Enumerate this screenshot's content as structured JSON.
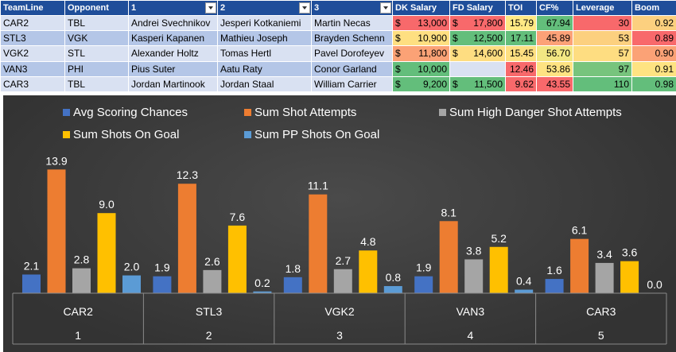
{
  "table": {
    "headers": [
      "TeamLine",
      "Opponent",
      "1",
      "2",
      "3",
      "DK Salary",
      "FD Salary",
      "TOI",
      "CF%",
      "Leverage",
      "Boom"
    ],
    "filter_columns": [
      2,
      3,
      4
    ],
    "rows": [
      {
        "teamline": "CAR2",
        "opponent": "TBL",
        "p1": "Andrei Svechnikov",
        "p2": "Jesperi Kotkaniemi",
        "p3": "Martin Necas",
        "dk_sym": "$",
        "dk": "13,000",
        "fd_sym": "$",
        "fd": "17,800",
        "toi": "15.79",
        "cf": "67.94",
        "leverage": "30",
        "boom": "0.92",
        "colors": {
          "dk": "#f8696b",
          "fd": "#f8696b",
          "toi": "#ffe984",
          "cf": "#63be7b",
          "leverage": "#f8696b",
          "boom": "#fcd07f"
        }
      },
      {
        "teamline": "STL3",
        "opponent": "VGK",
        "p1": "Kasperi Kapanen",
        "p2": "Mathieu Joseph",
        "p3": "Brayden Schenn",
        "dk_sym": "$",
        "dk": "10,900",
        "fd_sym": "$",
        "fd": "12,500",
        "toi": "17.11",
        "cf": "45.89",
        "leverage": "53",
        "boom": "0.89",
        "colors": {
          "dk": "#fedf81",
          "fd": "#63be7b",
          "toi": "#63be7b",
          "cf": "#fca177",
          "leverage": "#fcd07f",
          "boom": "#f8696b"
        }
      },
      {
        "teamline": "VGK2",
        "opponent": "STL",
        "p1": "Alexander Holtz",
        "p2": "Tomas Hertl",
        "p3": "Pavel Dorofeyev",
        "dk_sym": "$",
        "dk": "11,800",
        "fd_sym": "$",
        "fd": "14,600",
        "toi": "15.45",
        "cf": "56.70",
        "leverage": "57",
        "boom": "0.90",
        "colors": {
          "dk": "#fba276",
          "fd": "#fedd81",
          "toi": "#fedf81",
          "cf": "#f2e783",
          "leverage": "#fedd81",
          "boom": "#fba276"
        }
      },
      {
        "teamline": "VAN3",
        "opponent": "PHI",
        "p1": "Pius Suter",
        "p2": "Aatu Raty",
        "p3": "Conor Garland",
        "dk_sym": "$",
        "dk": "10,000",
        "fd_sym": "",
        "fd": "",
        "toi": "12.46",
        "cf": "53.86",
        "leverage": "97",
        "boom": "0.91",
        "colors": {
          "dk": "#63be7b",
          "fd": "#d9e1f2",
          "toi": "#f8696b",
          "cf": "#fee382",
          "leverage": "#77c47d",
          "boom": "#fee382"
        }
      },
      {
        "teamline": "CAR3",
        "opponent": "TBL",
        "p1": "Jordan Martinook",
        "p2": "Jordan Staal",
        "p3": "William Carrier",
        "dk_sym": "$",
        "dk": "9,200",
        "fd_sym": "$",
        "fd": "11,500",
        "toi": "9.62",
        "cf": "43.55",
        "leverage": "110",
        "boom": "0.98",
        "colors": {
          "dk": "#63be7b",
          "fd": "#63be7b",
          "toi": "#f8696b",
          "cf": "#f8696b",
          "leverage": "#63be7b",
          "boom": "#63be7b"
        }
      }
    ]
  },
  "chart_data": {
    "type": "bar",
    "title": "",
    "xlabel": "",
    "ylabel": "",
    "ylim": [
      0,
      15
    ],
    "legend_position": "top",
    "categories": [
      "CAR2",
      "STL3",
      "VGK2",
      "VAN3",
      "CAR3"
    ],
    "category_subs": [
      "1",
      "2",
      "3",
      "4",
      "5"
    ],
    "series": [
      {
        "name": "Avg Scoring Chances",
        "color": "#4472c4",
        "values": [
          2.1,
          1.9,
          1.8,
          1.9,
          1.6
        ],
        "labels": [
          "2.1",
          "1.9",
          "1.8",
          "1.9",
          "1.6"
        ]
      },
      {
        "name": "Sum Shot Attempts",
        "color": "#ed7d31",
        "values": [
          13.9,
          12.3,
          11.1,
          8.1,
          6.1
        ],
        "labels": [
          "13.9",
          "12.3",
          "11.1",
          "8.1",
          "6.1"
        ]
      },
      {
        "name": "Sum High Danger Shot Attempts",
        "color": "#a5a5a5",
        "values": [
          2.8,
          2.6,
          2.7,
          3.8,
          3.4
        ],
        "labels": [
          "2.8",
          "2.6",
          "2.7",
          "3.8",
          "3.4"
        ]
      },
      {
        "name": "Sum Shots On Goal",
        "color": "#ffc000",
        "values": [
          9.0,
          7.6,
          4.8,
          5.2,
          3.6
        ],
        "labels": [
          "9.0",
          "7.6",
          "4.8",
          "5.2",
          "3.6"
        ]
      },
      {
        "name": "Sum PP Shots On Goal",
        "color": "#5b9bd5",
        "values": [
          2.0,
          0.2,
          0.8,
          0.4,
          0.0
        ],
        "labels": [
          "2.0",
          "0.2",
          "0.8",
          "0.4",
          "0.0"
        ]
      }
    ]
  }
}
